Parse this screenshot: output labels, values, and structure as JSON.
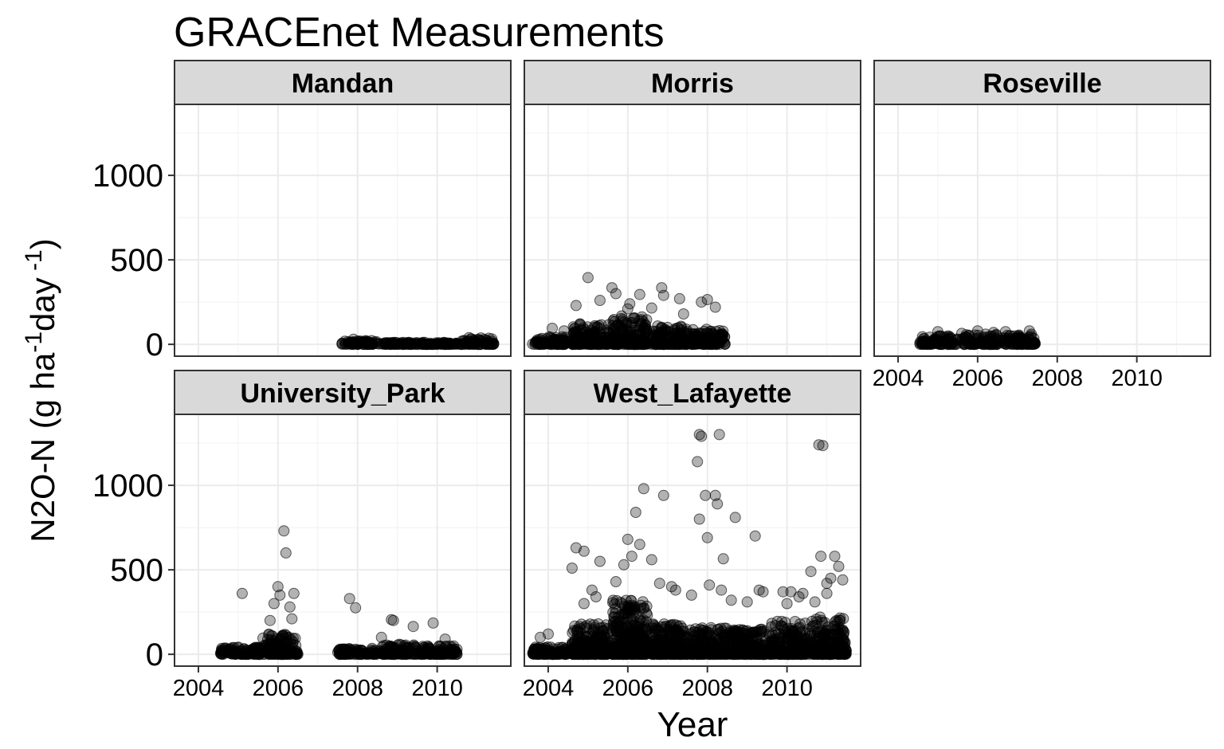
{
  "chart_data": {
    "type": "scatter",
    "title": "GRACEnet Measurements",
    "xlabel": "Year",
    "ylabel": {
      "text": "N2O-N (g ha",
      "sup1": "-1",
      "mid": "day",
      "sup2": " -1",
      "end": ")"
    },
    "xlim": [
      2003.4,
      2011.85
    ],
    "ylim": [
      -70,
      1420
    ],
    "x_ticks": [
      "2004",
      "2006",
      "2008",
      "2010"
    ],
    "x_tick_values": [
      2004,
      2006,
      2008,
      2010
    ],
    "y_ticks": [
      "0",
      "500",
      "1000"
    ],
    "y_tick_values": [
      0,
      500,
      1000
    ],
    "grid": true,
    "marker": {
      "color": "#000000",
      "opacity": 0.3,
      "stroke_opacity": 0.6
    },
    "colors": {
      "strip_fill": "#d9d9d9",
      "grid_major": "#ebebeb",
      "grid_minor": "#f4f4f4",
      "panel_border": "#333333"
    },
    "panels": [
      {
        "name": "Mandan",
        "clusters": [
          {
            "x0": 2007.6,
            "x1": 2008.55,
            "ymax": 22,
            "n": 70
          },
          {
            "x0": 2008.6,
            "x1": 2009.55,
            "ymax": 12,
            "n": 60
          },
          {
            "x0": 2009.6,
            "x1": 2010.5,
            "ymax": 12,
            "n": 60
          },
          {
            "x0": 2010.55,
            "x1": 2011.45,
            "ymax": 35,
            "n": 70
          }
        ],
        "points": [
          [
            2010.8,
            40
          ],
          [
            2011.1,
            38
          ],
          [
            2011.3,
            36
          ],
          [
            2007.9,
            30
          ]
        ]
      },
      {
        "name": "Morris",
        "clusters": [
          {
            "x0": 2003.6,
            "x1": 2004.45,
            "ymax": 45,
            "n": 90
          },
          {
            "x0": 2004.6,
            "x1": 2005.55,
            "ymax": 130,
            "n": 160
          },
          {
            "x0": 2005.6,
            "x1": 2006.5,
            "ymax": 170,
            "n": 190
          },
          {
            "x0": 2006.6,
            "x1": 2007.5,
            "ymax": 110,
            "n": 160
          },
          {
            "x0": 2007.6,
            "x1": 2008.45,
            "ymax": 90,
            "n": 130
          }
        ],
        "points": [
          [
            2005.0,
            395
          ],
          [
            2005.6,
            335
          ],
          [
            2005.7,
            300
          ],
          [
            2006.3,
            295
          ],
          [
            2006.85,
            335
          ],
          [
            2006.9,
            290
          ],
          [
            2007.3,
            270
          ],
          [
            2007.85,
            250
          ],
          [
            2008.0,
            265
          ],
          [
            2008.2,
            220
          ],
          [
            2004.7,
            230
          ],
          [
            2005.3,
            260
          ],
          [
            2006.05,
            240
          ],
          [
            2006.6,
            215
          ],
          [
            2004.1,
            95
          ],
          [
            2004.4,
            80
          ],
          [
            2007.4,
            180
          ],
          [
            2006.0,
            210
          ]
        ]
      },
      {
        "name": "Roseville",
        "clusters": [
          {
            "x0": 2004.55,
            "x1": 2005.5,
            "ymax": 50,
            "n": 90
          },
          {
            "x0": 2005.6,
            "x1": 2006.5,
            "ymax": 60,
            "n": 90
          },
          {
            "x0": 2006.6,
            "x1": 2007.45,
            "ymax": 55,
            "n": 90
          }
        ],
        "points": [
          [
            2005.0,
            75
          ],
          [
            2005.6,
            65
          ],
          [
            2006.0,
            80
          ],
          [
            2006.4,
            70
          ],
          [
            2006.7,
            75
          ],
          [
            2007.3,
            80
          ],
          [
            2007.35,
            60
          ]
        ]
      },
      {
        "name": "University_Park",
        "clusters": [
          {
            "x0": 2004.55,
            "x1": 2005.55,
            "ymax": 45,
            "n": 110
          },
          {
            "x0": 2005.6,
            "x1": 2006.5,
            "ymax": 120,
            "n": 140
          },
          {
            "x0": 2007.5,
            "x1": 2008.5,
            "ymax": 35,
            "n": 90
          },
          {
            "x0": 2008.55,
            "x1": 2009.5,
            "ymax": 60,
            "n": 100
          },
          {
            "x0": 2009.55,
            "x1": 2010.5,
            "ymax": 50,
            "n": 100
          }
        ],
        "points": [
          [
            2006.15,
            730
          ],
          [
            2006.2,
            600
          ],
          [
            2006.0,
            400
          ],
          [
            2006.05,
            350
          ],
          [
            2006.4,
            360
          ],
          [
            2005.1,
            360
          ],
          [
            2005.9,
            300
          ],
          [
            2006.3,
            280
          ],
          [
            2006.35,
            210
          ],
          [
            2005.8,
            200
          ],
          [
            2007.8,
            330
          ],
          [
            2007.95,
            275
          ],
          [
            2008.85,
            205
          ],
          [
            2008.9,
            200
          ],
          [
            2009.4,
            165
          ],
          [
            2009.9,
            185
          ],
          [
            2008.6,
            100
          ],
          [
            2010.2,
            90
          ],
          [
            2004.9,
            40
          ]
        ]
      },
      {
        "name": "West_Lafayette",
        "clusters": [
          {
            "x0": 2003.6,
            "x1": 2004.5,
            "ymax": 45,
            "n": 120
          },
          {
            "x0": 2004.6,
            "x1": 2005.5,
            "ymax": 180,
            "n": 260
          },
          {
            "x0": 2005.6,
            "x1": 2006.5,
            "ymax": 320,
            "n": 340
          },
          {
            "x0": 2006.6,
            "x1": 2007.5,
            "ymax": 180,
            "n": 240
          },
          {
            "x0": 2007.55,
            "x1": 2008.5,
            "ymax": 160,
            "n": 220
          },
          {
            "x0": 2008.55,
            "x1": 2009.5,
            "ymax": 150,
            "n": 220
          },
          {
            "x0": 2009.55,
            "x1": 2010.5,
            "ymax": 200,
            "n": 240
          },
          {
            "x0": 2010.55,
            "x1": 2011.5,
            "ymax": 220,
            "n": 260
          }
        ],
        "points": [
          [
            2007.8,
            1300
          ],
          [
            2007.85,
            1290
          ],
          [
            2008.3,
            1300
          ],
          [
            2010.8,
            1240
          ],
          [
            2010.9,
            1235
          ],
          [
            2007.75,
            1140
          ],
          [
            2007.95,
            940
          ],
          [
            2008.2,
            940
          ],
          [
            2008.25,
            890
          ],
          [
            2008.7,
            810
          ],
          [
            2009.2,
            700
          ],
          [
            2007.8,
            800
          ],
          [
            2008.0,
            690
          ],
          [
            2006.4,
            980
          ],
          [
            2006.9,
            940
          ],
          [
            2006.2,
            840
          ],
          [
            2006.0,
            680
          ],
          [
            2006.3,
            650
          ],
          [
            2004.7,
            630
          ],
          [
            2004.9,
            610
          ],
          [
            2004.6,
            510
          ],
          [
            2005.3,
            550
          ],
          [
            2008.4,
            565
          ],
          [
            2010.6,
            490
          ],
          [
            2010.85,
            580
          ],
          [
            2011.2,
            580
          ],
          [
            2011.3,
            520
          ],
          [
            2011.1,
            450
          ],
          [
            2011.4,
            440
          ],
          [
            2011.0,
            420
          ],
          [
            2006.1,
            580
          ],
          [
            2005.9,
            530
          ],
          [
            2006.6,
            560
          ],
          [
            2005.7,
            430
          ],
          [
            2006.8,
            420
          ],
          [
            2007.1,
            400
          ],
          [
            2007.2,
            380
          ],
          [
            2008.05,
            410
          ],
          [
            2008.35,
            380
          ],
          [
            2009.3,
            380
          ],
          [
            2009.4,
            370
          ],
          [
            2009.9,
            370
          ],
          [
            2010.1,
            370
          ],
          [
            2010.3,
            340
          ],
          [
            2010.4,
            360
          ],
          [
            2005.1,
            380
          ],
          [
            2005.2,
            340
          ],
          [
            2004.9,
            300
          ],
          [
            2007.6,
            350
          ],
          [
            2008.6,
            320
          ],
          [
            2009.0,
            310
          ],
          [
            2010.0,
            300
          ],
          [
            2010.7,
            310
          ],
          [
            2011.0,
            360
          ],
          [
            2004.0,
            120
          ],
          [
            2003.8,
            100
          ]
        ]
      }
    ]
  }
}
